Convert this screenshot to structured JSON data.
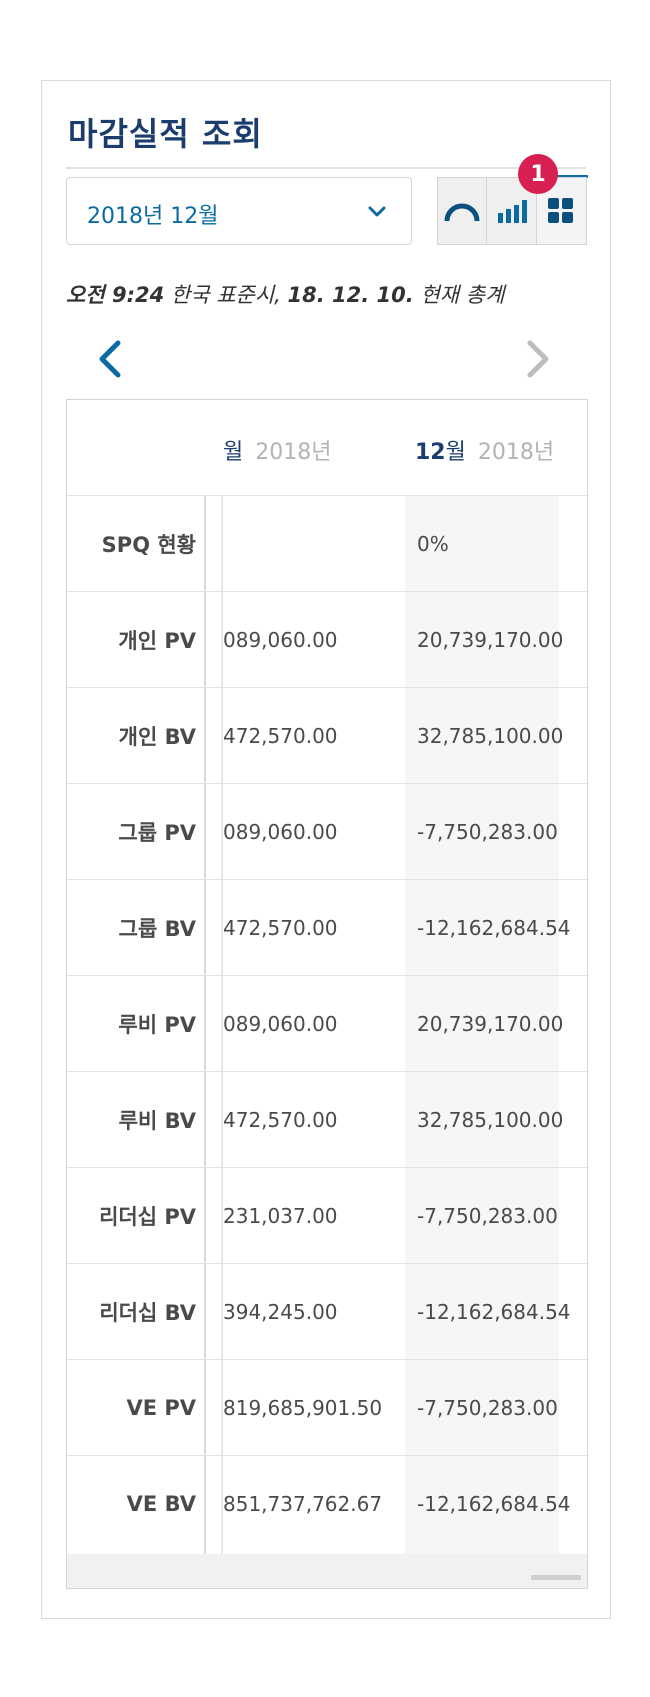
{
  "header": {
    "title": "마감실적 조회"
  },
  "period_select": {
    "value": "2018년 12월"
  },
  "view_toggle": {
    "badge_count": "1",
    "buttons": [
      "gauge-view",
      "bar-chart-view",
      "grid-view"
    ],
    "active": "grid-view"
  },
  "timestamp": {
    "time": "오전 9:24",
    "tz": "한국 표준시,",
    "date": "18. 12. 10.",
    "suffix": "현재 총계"
  },
  "table": {
    "columns": [
      {
        "month_num": "",
        "month_unit": "월",
        "year": "2018년"
      },
      {
        "month_num": "12",
        "month_unit": "월",
        "year": "2018년"
      }
    ],
    "rows": [
      {
        "label": "SPQ 현황",
        "prev": "",
        "cur": "0%"
      },
      {
        "label": "개인 PV",
        "prev": "089,060.00",
        "cur": "20,739,170.00"
      },
      {
        "label": "개인 BV",
        "prev": "472,570.00",
        "cur": "32,785,100.00"
      },
      {
        "label": "그룹 PV",
        "prev": "089,060.00",
        "cur": "-7,750,283.00"
      },
      {
        "label": "그룹 BV",
        "prev": "472,570.00",
        "cur": "-12,162,684.54"
      },
      {
        "label": "루비 PV",
        "prev": "089,060.00",
        "cur": "20,739,170.00"
      },
      {
        "label": "루비 BV",
        "prev": "472,570.00",
        "cur": "32,785,100.00"
      },
      {
        "label": "리더십 PV",
        "prev": "231,037.00",
        "cur": "-7,750,283.00"
      },
      {
        "label": "리더십 BV",
        "prev": "394,245.00",
        "cur": "-12,162,684.54"
      },
      {
        "label": "VE PV",
        "prev": "819,685,901.50",
        "cur": "-7,750,283.00"
      },
      {
        "label": "VE BV",
        "prev": "851,737,762.67",
        "cur": "-12,162,684.54"
      }
    ]
  },
  "colors": {
    "accent": "#0b6aa1",
    "title": "#1a3d6d",
    "badge": "#d81f52"
  }
}
